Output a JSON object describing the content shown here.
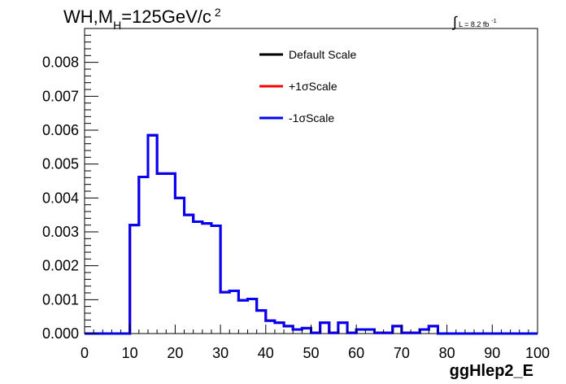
{
  "chart_data": {
    "type": "line",
    "style": "step-histogram",
    "title": {
      "prefix": "WH,M",
      "subscript": "H",
      "suffix": "=125GeV/c",
      "superscript": "2"
    },
    "luminosity": {
      "symbol": "∫",
      "text": "L = 8.2 fb",
      "superscript": "-1"
    },
    "xlabel": "ggHlep2_E",
    "ylabel": "",
    "xlim": [
      0,
      100
    ],
    "ylim": [
      0,
      0.009
    ],
    "x_ticks": [
      "0",
      "10",
      "20",
      "30",
      "40",
      "50",
      "60",
      "70",
      "80",
      "90",
      "100"
    ],
    "y_ticks": [
      "0.000",
      "0.001",
      "0.002",
      "0.003",
      "0.004",
      "0.005",
      "0.006",
      "0.007",
      "0.008"
    ],
    "bin_width": 2,
    "bin_low_edges": [
      0,
      2,
      4,
      6,
      8,
      10,
      12,
      14,
      16,
      18,
      20,
      22,
      24,
      26,
      28,
      30,
      32,
      34,
      36,
      38,
      40,
      42,
      44,
      46,
      48,
      50,
      52,
      54,
      56,
      58,
      60,
      62,
      64,
      66,
      68,
      70,
      72,
      74,
      76,
      78,
      80,
      82,
      84,
      86,
      88,
      90,
      92,
      94,
      96,
      98
    ],
    "legend_position": "top-center",
    "series": [
      {
        "name": "Default Scale",
        "color": "#000000",
        "values": [
          0,
          0,
          0,
          0,
          0,
          0.0032,
          0.00462,
          0.00585,
          0.00472,
          0.00472,
          0.004,
          0.0035,
          0.0033,
          0.00325,
          0.00318,
          0.00122,
          0.00126,
          0.00098,
          0.00102,
          0.00068,
          0.00038,
          0.00032,
          0.00022,
          0.00012,
          0.00016,
          2e-05,
          0.00032,
          2e-05,
          0.00032,
          2e-05,
          0.00012,
          0.00012,
          2e-05,
          2e-05,
          0.00022,
          2e-05,
          2e-05,
          0.00012,
          0.00022,
          0,
          0,
          0,
          0,
          0,
          0,
          0,
          0,
          0,
          0,
          0
        ]
      },
      {
        "name": "+1σScale",
        "color": "#ff0000",
        "values": [
          0,
          0,
          0,
          0,
          0,
          0.0032,
          0.00462,
          0.00585,
          0.00472,
          0.00472,
          0.004,
          0.0035,
          0.0033,
          0.00325,
          0.00318,
          0.00122,
          0.00126,
          0.00098,
          0.00102,
          0.00068,
          0.00038,
          0.00032,
          0.00022,
          0.00012,
          0.00016,
          2e-05,
          0.00032,
          2e-05,
          0.00032,
          2e-05,
          0.00012,
          0.00012,
          2e-05,
          2e-05,
          0.00022,
          2e-05,
          2e-05,
          0.00012,
          0.00022,
          0,
          0,
          0,
          0,
          0,
          0,
          0,
          0,
          0,
          0,
          0
        ]
      },
      {
        "name": "-1σScale",
        "color": "#0000ff",
        "values": [
          0,
          0,
          0,
          0,
          0,
          0.0032,
          0.00462,
          0.00585,
          0.00472,
          0.00472,
          0.004,
          0.0035,
          0.0033,
          0.00325,
          0.00318,
          0.00122,
          0.00126,
          0.00098,
          0.00102,
          0.00068,
          0.00038,
          0.00032,
          0.00022,
          0.00012,
          0.00016,
          2e-05,
          0.00032,
          2e-05,
          0.00032,
          2e-05,
          0.00012,
          0.00012,
          2e-05,
          2e-05,
          0.00022,
          2e-05,
          2e-05,
          0.00012,
          0.00022,
          0,
          0,
          0,
          0,
          0,
          0,
          0,
          0,
          0,
          0,
          0
        ]
      }
    ]
  }
}
